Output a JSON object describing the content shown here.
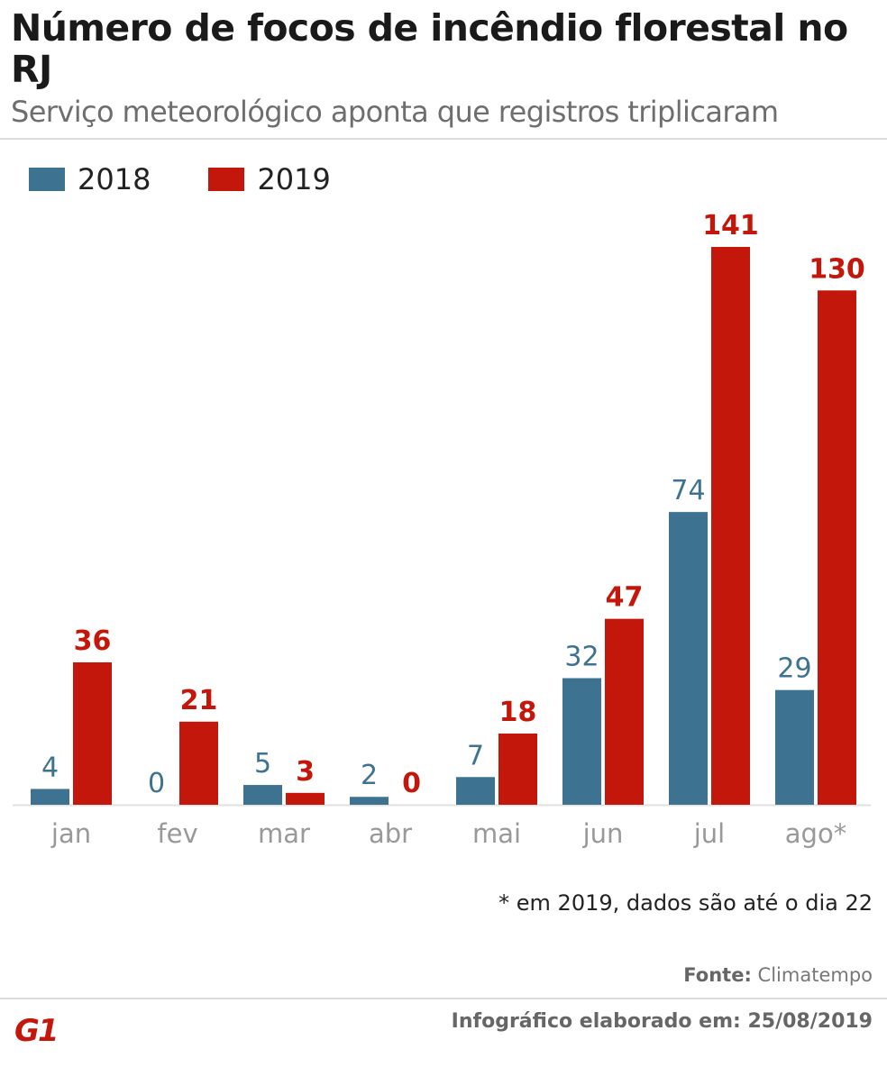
{
  "header": {
    "title": "Número de focos de incêndio florestal no RJ",
    "subtitle": "Serviço meteorológico aponta que registros triplicaram"
  },
  "colors": {
    "series_2018": "#3d7391",
    "series_2019": "#c4170c",
    "label_2018": "#3d7391",
    "label_2019": "#c4170c",
    "axis_label": "#999999",
    "baseline": "#e0e0e0"
  },
  "chart_data": {
    "type": "bar",
    "title": "Número de focos de incêndio florestal no RJ",
    "subtitle": "Serviço meteorológico aponta que registros triplicaram",
    "categories": [
      "jan",
      "fev",
      "mar",
      "abr",
      "mai",
      "jun",
      "jul",
      "ago*"
    ],
    "series": [
      {
        "name": "2018",
        "values": [
          4,
          0,
          5,
          2,
          7,
          32,
          74,
          29
        ]
      },
      {
        "name": "2019",
        "values": [
          36,
          21,
          3,
          0,
          18,
          47,
          141,
          130
        ]
      }
    ],
    "xlabel": "",
    "ylabel": "",
    "ylim": [
      0,
      141
    ],
    "grid": false,
    "legend": "top-left",
    "data_labels": true
  },
  "legend": {
    "items": [
      {
        "label": "2018"
      },
      {
        "label": "2019"
      }
    ]
  },
  "footer": {
    "footnote": "* em 2019, dados são até o dia 22",
    "source_label": "Fonte:",
    "source_value": "Climatempo",
    "credit": "Infográfico elaborado em: 25/08/2019",
    "logo": "G1"
  }
}
